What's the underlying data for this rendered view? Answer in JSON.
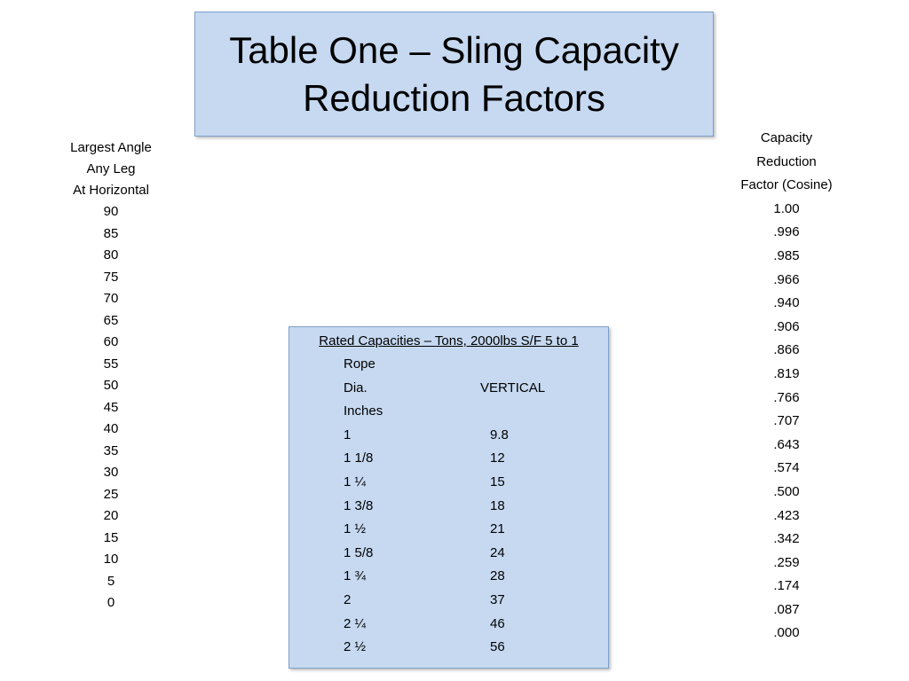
{
  "title": "Table One – Sling Capacity\nReduction Factors",
  "left_column": {
    "header_lines": [
      "Largest Angle",
      "Any Leg",
      "At Horizontal"
    ],
    "values": [
      "90",
      "85",
      "80",
      "75",
      "70",
      "65",
      "60",
      "55",
      "50",
      "45",
      "40",
      "35",
      "30",
      "25",
      "20",
      "15",
      "10",
      "5",
      "0"
    ]
  },
  "right_column": {
    "header_lines": [
      "Capacity",
      "Reduction",
      "Factor (Cosine)"
    ],
    "values": [
      "1.00",
      ".996",
      ".985",
      ".966",
      ".940",
      ".906",
      ".866",
      ".819",
      ".766",
      ".707",
      ".643",
      ".574",
      ".500",
      ".423",
      ".342",
      ".259",
      ".174",
      ".087",
      ".000"
    ]
  },
  "capacity_table": {
    "title": "Rated Capacities – Tons, 2000lbs S/F 5 to 1",
    "header": {
      "col1_lines": [
        "Rope",
        "Dia.",
        "Inches"
      ],
      "col2": "VERTICAL"
    },
    "rows": [
      {
        "dia": "1",
        "vertical": "9.8"
      },
      {
        "dia": "1 1/8",
        "vertical": "12"
      },
      {
        "dia": "1 ¼",
        "vertical": "15"
      },
      {
        "dia": "1 3/8",
        "vertical": "18"
      },
      {
        "dia": "1 ½",
        "vertical": "21"
      },
      {
        "dia": "1 5/8",
        "vertical": "24"
      },
      {
        "dia": "1 ¾",
        "vertical": "28"
      },
      {
        "dia": "2",
        "vertical": "37"
      },
      {
        "dia": "2 ¼",
        "vertical": "46"
      },
      {
        "dia": "2 ½",
        "vertical": "56"
      }
    ]
  }
}
